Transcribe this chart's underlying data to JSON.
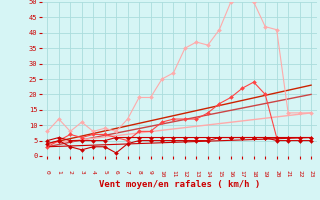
{
  "background_color": "#d6f5f5",
  "grid_color": "#aadddd",
  "xlabel": "Vent moyen/en rafales ( km/h )",
  "xlabel_color": "#cc0000",
  "tick_color": "#cc0000",
  "xlim": [
    -0.5,
    23.5
  ],
  "ylim": [
    0,
    50
  ],
  "yticks": [
    0,
    5,
    10,
    15,
    20,
    25,
    30,
    35,
    40,
    45,
    50
  ],
  "xticks": [
    0,
    1,
    2,
    3,
    4,
    5,
    6,
    7,
    8,
    9,
    10,
    11,
    12,
    13,
    14,
    15,
    16,
    17,
    18,
    19,
    20,
    21,
    22,
    23
  ],
  "series": [
    {
      "x": [
        0,
        1,
        2,
        3,
        4,
        5,
        6,
        7,
        8,
        9,
        10,
        11,
        12,
        13,
        14,
        15,
        16,
        17,
        18,
        19,
        20,
        21,
        22,
        23
      ],
      "y": [
        8,
        12,
        8,
        11,
        8,
        9,
        8,
        12,
        19,
        19,
        25,
        27,
        35,
        37,
        36,
        41,
        50,
        51,
        50,
        42,
        41,
        14,
        14,
        14
      ],
      "color": "#ffaaaa",
      "lw": 0.8,
      "marker": "D",
      "ms": 2.0,
      "zorder": 3
    },
    {
      "x": [
        0,
        1,
        2,
        3,
        4,
        5,
        6,
        7,
        8,
        9,
        10,
        11,
        12,
        13,
        14,
        15,
        16,
        17,
        18,
        19,
        20,
        21,
        22,
        23
      ],
      "y": [
        3,
        5,
        7,
        6,
        7,
        7,
        6,
        5,
        8,
        8,
        11,
        12,
        12,
        12,
        14,
        17,
        19,
        22,
        24,
        20,
        6,
        6,
        6,
        6
      ],
      "color": "#ff4444",
      "lw": 0.8,
      "marker": "D",
      "ms": 2.0,
      "zorder": 4
    },
    {
      "x": [
        0,
        1,
        2,
        3,
        4,
        5,
        6,
        7,
        8,
        9,
        10,
        11,
        12,
        13,
        14,
        15,
        16,
        17,
        18,
        19,
        20,
        21,
        22,
        23
      ],
      "y": [
        4,
        5,
        3,
        2,
        3,
        3,
        1,
        4,
        5,
        5,
        5,
        5,
        5,
        5,
        5,
        6,
        6,
        6,
        6,
        6,
        5,
        5,
        5,
        5
      ],
      "color": "#cc0000",
      "lw": 0.8,
      "marker": "D",
      "ms": 2.0,
      "zorder": 4
    },
    {
      "x": [
        0,
        1,
        2,
        3,
        4,
        5,
        6,
        7,
        8,
        9,
        10,
        11,
        12,
        13,
        14,
        15,
        16,
        17,
        18,
        19,
        20,
        21,
        22,
        23
      ],
      "y": [
        5,
        6,
        5,
        5,
        5,
        5,
        6,
        6,
        6,
        6,
        6,
        6,
        6,
        6,
        6,
        6,
        6,
        6,
        6,
        6,
        6,
        6,
        6,
        6
      ],
      "color": "#cc0000",
      "lw": 0.8,
      "marker": "D",
      "ms": 2.0,
      "zorder": 4
    },
    {
      "x": [
        0,
        23
      ],
      "y": [
        4,
        23
      ],
      "color": "#cc2200",
      "lw": 1.0,
      "marker": null,
      "ms": 0,
      "zorder": 2
    },
    {
      "x": [
        0,
        23
      ],
      "y": [
        3,
        20
      ],
      "color": "#cc4444",
      "lw": 1.0,
      "marker": null,
      "ms": 0,
      "zorder": 2
    },
    {
      "x": [
        0,
        23
      ],
      "y": [
        4,
        14
      ],
      "color": "#ffaaaa",
      "lw": 1.0,
      "marker": null,
      "ms": 0,
      "zorder": 2
    },
    {
      "x": [
        0,
        23
      ],
      "y": [
        3,
        6
      ],
      "color": "#cc0000",
      "lw": 0.8,
      "marker": null,
      "ms": 0,
      "zorder": 2
    }
  ]
}
